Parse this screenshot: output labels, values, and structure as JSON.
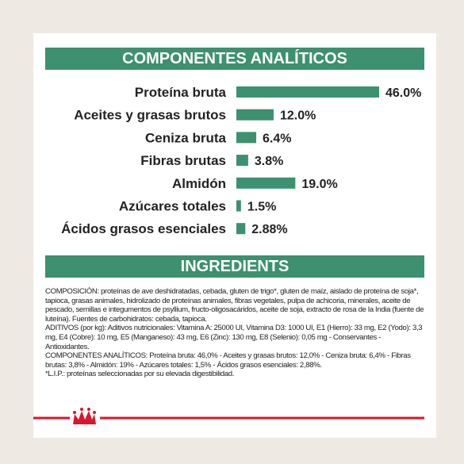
{
  "chart_data": {
    "type": "bar",
    "orientation": "horizontal",
    "title": "COMPONENTES ANALÍTICOS",
    "color": "#3d9070",
    "categories": [
      "Proteína bruta",
      "Aceites y grasas brutos",
      "Ceniza bruta",
      "Fibras brutas",
      "Almidón",
      "Azúcares totales",
      "Ácidos grasos esenciales"
    ],
    "values": [
      46.0,
      12.0,
      6.4,
      3.8,
      19.0,
      1.5,
      2.88
    ],
    "value_labels": [
      "46.0%",
      "12.0%",
      "6.4%",
      "3.8%",
      "19.0%",
      "1.5%",
      "2.88%"
    ]
  },
  "ingredients": {
    "title": "INGREDIENTS",
    "paragraphs": [
      "COMPOSICIÓN: proteínas de ave deshidratadas, cebada, gluten de trigo*, gluten de maíz, aislado de proteína de soja*, tapioca, grasas animales, hidrolizado de proteínas animales, fibras vegetales, pulpa de achicoria, minerales, aceite de pescado, semillas e integumentos de psyllium, fructo-oligosacáridos, aceite de soja, extracto de rosa de la India (fuente de luteína). Fuentes de carbohidratos: cebada, tapioca.",
      "ADITIVOS (por kg): Aditivos nutricionales: Vitamina A: 25000 UI, Vitamina D3: 1000 UI, E1 (Hierro): 33 mg, E2 (Yodo): 3,3 mg, E4 (Cobre): 10 mg, E5 (Manganeso): 43 mg, E6 (Zinc): 130 mg, E8 (Selenio): 0,05 mg - Conservantes - Antioxidantes.",
      "COMPONENTES ANALÍTICOS: Proteína bruta: 46,0% - Aceites y grasas brutos: 12,0% - Ceniza bruta: 6,4% - Fibras brutas: 3,8% - Almidón: 19% - Azúcares totales: 1,5% - Ácidos grasos esenciales: 2,88%.",
      "*L.I.P.: proteínas seleccionadas por su elevada digestibilidad."
    ]
  }
}
